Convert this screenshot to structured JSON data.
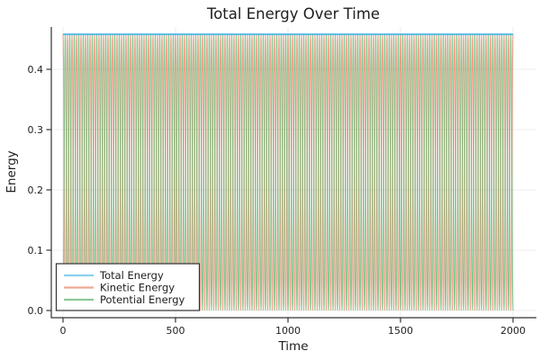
{
  "title": "Total Energy Over Time",
  "axes": {
    "xlabel": "Time",
    "ylabel": "Energy",
    "x_tick_labels": [
      "0",
      "500",
      "1000",
      "1500",
      "2000"
    ],
    "y_tick_labels": [
      "0.0",
      "0.1",
      "0.2",
      "0.3",
      "0.4"
    ]
  },
  "legend": {
    "position": "bottom-left",
    "entries": [
      {
        "label": "Total Energy",
        "color": "#3db2e2"
      },
      {
        "label": "Kinetic Energy",
        "color": "#e26e47"
      },
      {
        "label": "Potential Energy",
        "color": "#3ea44e"
      }
    ]
  },
  "colors": {
    "grid": "#e6e6e6",
    "axis": "#333333",
    "legend_border": "#333333",
    "background": "#ffffff"
  },
  "chart_data": {
    "type": "line",
    "title": "Total Energy Over Time",
    "xlabel": "Time",
    "ylabel": "Energy",
    "x_range": [
      0,
      2000
    ],
    "xlim": [
      -52,
      2104
    ],
    "ylim": [
      -0.012,
      0.47
    ],
    "x_ticks": [
      0,
      500,
      1000,
      1500,
      2000
    ],
    "y_ticks": [
      0.0,
      0.1,
      0.2,
      0.3,
      0.4
    ],
    "grid": true,
    "legend_position": "bottom-left",
    "total_energy": 0.458,
    "oscillation_period": 20,
    "sample_step": 1,
    "series": [
      {
        "name": "Total Energy",
        "kind": "constant",
        "value": 0.458,
        "color": "#3db2e2",
        "alpha": 0.85,
        "description": "horizontal line at E = 0.458 from t=0 to t=2000"
      },
      {
        "name": "Kinetic Energy",
        "kind": "oscillation",
        "amplitude": 0.458,
        "period": 20,
        "phase": "cos",
        "color": "#e26e47",
        "alpha": 0.62,
        "description": "KE = E*cos^2(pi*t/20), oscillates 0 to 0.458, ~100 peaks over 0..2000"
      },
      {
        "name": "Potential Energy",
        "kind": "oscillation",
        "amplitude": 0.458,
        "period": 20,
        "phase": "sin",
        "color": "#3ea44e",
        "alpha": 0.62,
        "description": "PE = E*sin^2(pi*t/20), oscillates 0 to 0.458, antiphase with KE so KE+PE=E"
      }
    ]
  }
}
